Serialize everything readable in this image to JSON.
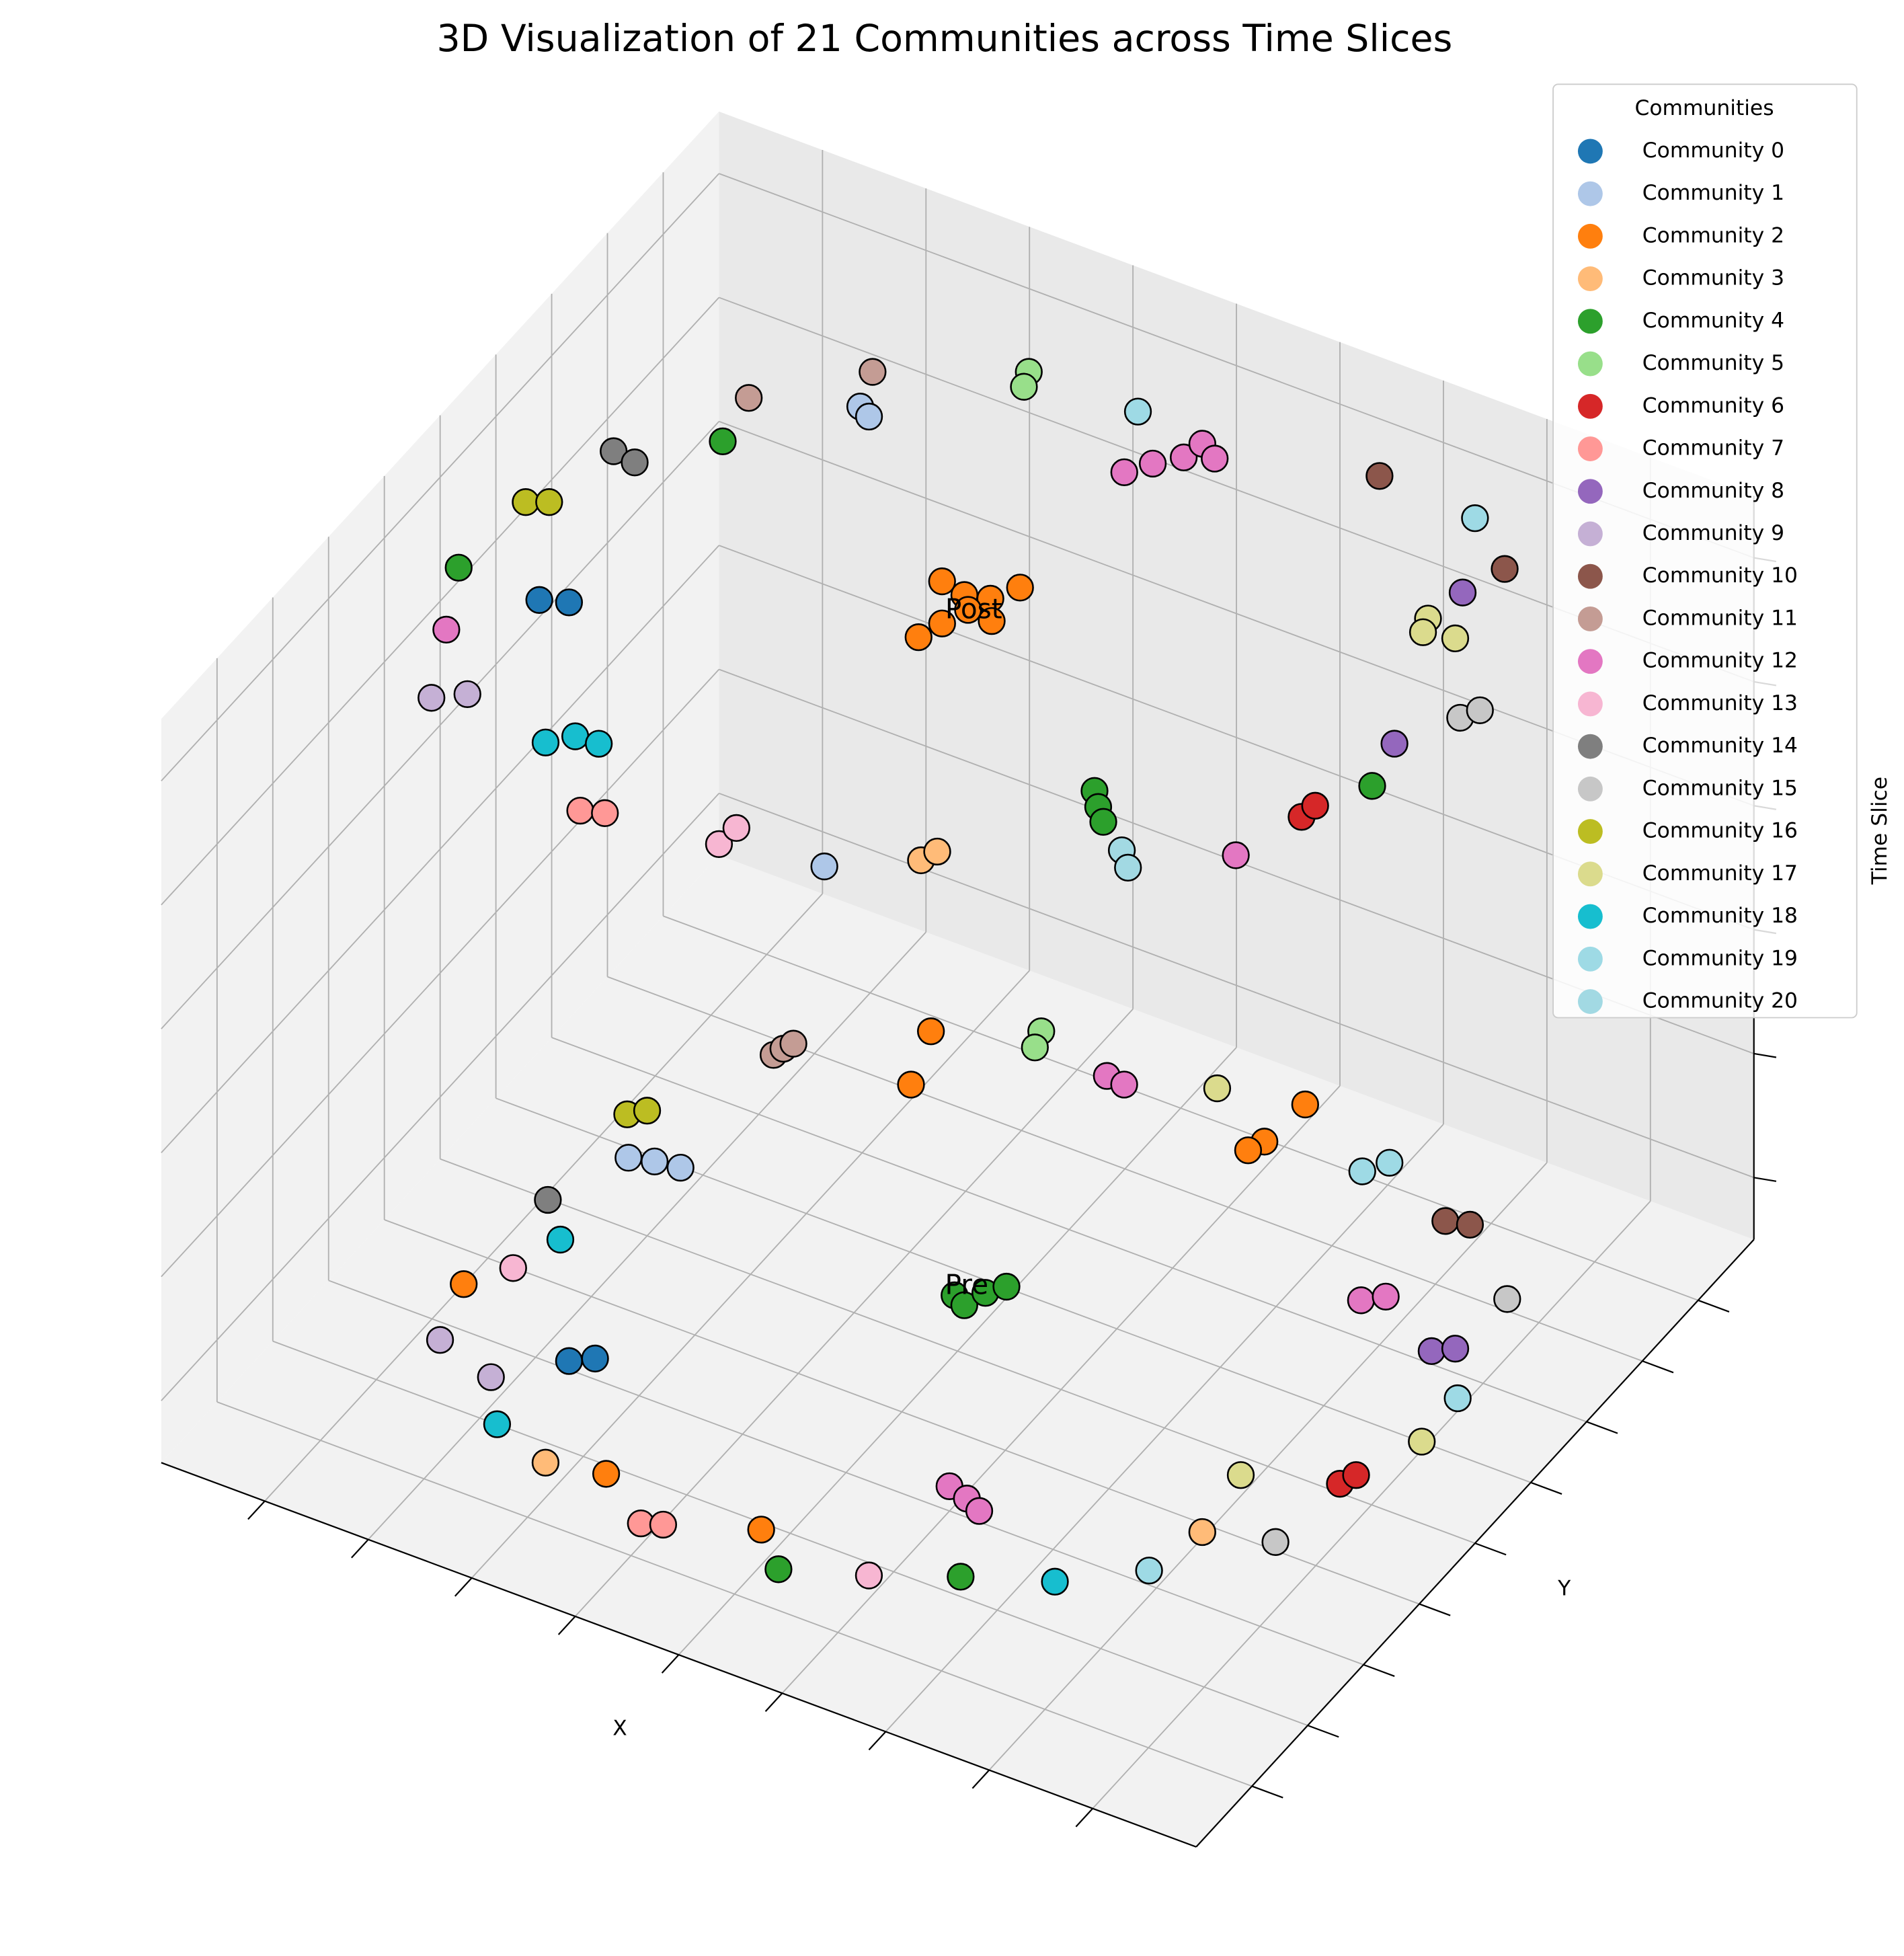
{
  "chart_data": {
    "type": "scatter3d",
    "title": "3D Visualization of 21 Communities across Time Slices",
    "xlabel": "X",
    "ylabel": "Y",
    "zlabel": "Time Slice",
    "legend_title": "Communities",
    "legend": "upper right",
    "grid": true,
    "xlim": [
      0,
      100
    ],
    "ylim": [
      0,
      100
    ],
    "zlim": [
      -0.1,
      1.1
    ],
    "xticks": [
      10,
      20,
      30,
      40,
      50,
      60,
      70,
      80,
      90
    ],
    "yticks": [
      10,
      20,
      30,
      40,
      50,
      60,
      70,
      80,
      90
    ],
    "zticks": [
      0,
      0.2,
      0.4,
      0.6,
      0.8,
      1
    ],
    "annotations": [
      {
        "text": "Post",
        "x": 47.3,
        "y": 57.9,
        "z": 1
      },
      {
        "text": "Pre",
        "x": 50.5,
        "y": 50.7,
        "z": 0
      }
    ],
    "series": [
      {
        "name": "Community 0",
        "color": "#1f77b4",
        "x": [
          15.27,
          17.57,
          26.76,
          28.47
        ],
        "y": [
          39.45,
          40.51,
          23.46,
          24.95
        ],
        "z": [
          1,
          1,
          0,
          0
        ]
      },
      {
        "name": "Community 1",
        "color": "#aec7e8",
        "x": [
          25.6,
          26.89,
          53.44,
          17.59,
          19.72,
          22.0
        ],
        "y": [
          77.83,
          77.0,
          19.73,
          51.13,
          51.86,
          52.28
        ],
        "z": [
          1,
          1,
          1,
          0,
          0,
          0
        ]
      },
      {
        "name": "Community 2",
        "color": "#ff7f0e",
        "x": [
          43.06,
          45.57,
          47.69,
          49.09,
          46.82,
          49.26,
          45.06,
          45.85,
          31.02,
          33.11,
          62.83,
          62.35,
          61.75,
          14.08,
          36.9,
          51.76
        ],
        "y": [
          60.1,
          59.44,
          60.17,
          62.89,
          57.78,
          57.49,
          52.17,
          54.93,
          80.44,
          72.99,
          88.52,
          82.1,
          80.29,
          28.1,
          11.3,
          11.52
        ],
        "z": [
          1,
          1,
          1,
          1,
          1,
          1,
          1,
          1,
          0,
          0,
          0,
          0,
          0,
          0,
          0,
          0
        ]
      },
      {
        "name": "Community 3",
        "color": "#ffbb78",
        "x": [
          60.0,
          60.59,
          31.79,
          83.71
        ],
        "y": [
          24.89,
          26.7,
          9.91,
          31.33
        ],
        "z": [
          1,
          1,
          0,
          0
        ]
      },
      {
        "name": "Community 4",
        "color": "#2ca02c",
        "x": [
          17.99,
          7.32,
          67.91,
          69.24,
          70.59,
          87.59,
          50.19,
          51.55,
          52.25,
          53.36,
          55.63,
          69.25
        ],
        "y": [
          67.29,
          39.74,
          41.32,
          39.51,
          37.92,
          54.59,
          49.1,
          48.33,
          50.81,
          52.53,
          7.44,
          14.83
        ],
        "z": [
          1,
          1,
          1,
          1,
          1,
          1,
          0,
          0,
          0,
          0,
          0,
          0
        ]
      },
      {
        "name": "Community 5",
        "color": "#98df8a",
        "x": [
          35.45,
          36.08,
          38.97,
          39.58
        ],
        "y": [
          89.77,
          87.72,
          85.47,
          83.2
        ],
        "z": [
          1,
          1,
          0,
          0
        ]
      },
      {
        "name": "Community 6",
        "color": "#d62728",
        "x": [
          84.55,
          84.79,
          90.43,
          91.02
        ],
        "y": [
          47.57,
          49.56,
          43.53,
          45.34
        ],
        "z": [
          1,
          1,
          0,
          0
        ]
      },
      {
        "name": "Community 7",
        "color": "#ff9896",
        "x": [
          32.16,
          34.1,
          42.68,
          44.37
        ],
        "y": [
          15.45,
          16.27,
          6.8,
          7.66
        ],
        "z": [
          1,
          1,
          0,
          0
        ]
      },
      {
        "name": "Community 8",
        "color": "#9467bd",
        "x": [
          81.31,
          86.4,
          88.26,
          89.8
        ],
        "y": [
          82.46,
          60.79,
          64.0,
          65.38
        ],
        "z": [
          1,
          1,
          0,
          0
        ]
      },
      {
        "name": "Community 9",
        "color": "#c5b0d5",
        "x": [
          13.97,
          16.32,
          16.07,
          22.2
        ],
        "y": [
          22.52,
          24.61,
          20.17,
          17.92
        ],
        "z": [
          1,
          1,
          0,
          0
        ]
      },
      {
        "name": "Community 10",
        "color": "#8c564b",
        "x": [
          67.61,
          82.78,
          80.64,
          82.66
        ],
        "y": [
          92.98,
          87.27,
          80.6,
          81.27
        ],
        "z": [
          1,
          1,
          0,
          0
        ]
      },
      {
        "name": "Community 11",
        "color": "#c49c94",
        "x": [
          16.99,
          24.19,
          21.24,
          21.54,
          21.93
        ],
        "y": [
          73.81,
          82.65,
          70.37,
          71.58,
          72.65
        ],
        "z": [
          1,
          1,
          0,
          0,
          0
        ]
      },
      {
        "name": "Community 12",
        "color": "#e377c2",
        "x": [
          48.97,
          50.45,
          52.27,
          52.71,
          54.58,
          10.53,
          82.35,
          46.65,
          48.47,
          79.81,
          81.35,
          62.46,
          64.53,
          66.24
        ],
        "y": [
          81.8,
          84.16,
          86.33,
          88.86,
          87.6,
          31.57,
          39.86,
          82.98,
          82.71,
          67.02,
          68.6,
          25.43,
          24.71,
          23.75
        ],
        "z": [
          1,
          1,
          1,
          1,
          1,
          1,
          1,
          0,
          0,
          0,
          0,
          0,
          0,
          0
        ]
      },
      {
        "name": "Community 13",
        "color": "#f7b6d2",
        "x": [
          44.37,
          44.56,
          16.58,
          62.56
        ],
        "y": [
          17.67,
          20.44,
          32.33,
          10.8
        ],
        "z": [
          1,
          1,
          0,
          0
        ]
      },
      {
        "name": "Community 14",
        "color": "#7f7f7f",
        "x": [
          10.78,
          13.04,
          14.57
        ],
        "y": [
          61.1,
          60.69,
          42.28
        ],
        "z": [
          1,
          1,
          0
        ]
      },
      {
        "name": "Community 15",
        "color": "#c7c7c7",
        "x": [
          89.42,
          90.35,
          90.26,
          89.64
        ],
        "y": [
          66.97,
          68.79,
          73.84,
          33.44
        ],
        "z": [
          1,
          1,
          0,
          0
        ]
      },
      {
        "name": "Community 16",
        "color": "#bcbd22",
        "x": [
          7.81,
          9.5,
          14.63,
          15.82
        ],
        "y": [
          50.85,
          51.92,
          56.4,
          57.76
        ],
        "z": [
          1,
          1,
          0,
          0
        ]
      },
      {
        "name": "Community 17",
        "color": "#dbdb8d",
        "x": [
          80.54,
          81.08,
          83.81,
          55.42,
          82.71,
          93.54
        ],
        "y": [
          77.68,
          75.78,
          76.49,
          86.49,
          40.08,
          52.44
        ],
        "z": [
          1,
          1,
          1,
          0,
          0,
          0
        ]
      },
      {
        "name": "Community 18",
        "color": "#17becf",
        "x": [
          25.15,
          26.88,
          29.07,
          18.1,
          25.76,
          76.37
        ],
        "y": [
          22.24,
          24.35,
          24.51,
          37.97,
          12.42,
          18.52
        ],
        "z": [
          1,
          1,
          1,
          0,
          0,
          0
        ]
      },
      {
        "name": "Community 19",
        "color": "#9edae5",
        "x": [
          45.94,
          77.28,
          71.37,
          72.76,
          93.26,
          82.42
        ],
        "y": [
          89.87,
          92.15,
          82.91,
          85.21,
          59.4,
          24.18
        ],
        "z": [
          1,
          1,
          0,
          0,
          0,
          0
        ]
      },
      {
        "name": "Community 20",
        "color": "#a2d9e3",
        "x": [
          73.81,
          75.4
        ],
        "y": [
          35.27,
          33.42
        ],
        "z": [
          1,
          1
        ]
      }
    ]
  }
}
